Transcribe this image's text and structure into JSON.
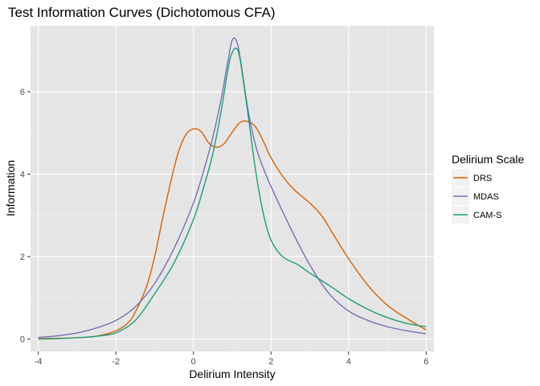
{
  "chart_data": {
    "type": "line",
    "title": "Test Information Curves (Dichotomous CFA)",
    "xlabel": "Delirium Intensity",
    "ylabel": "Information",
    "xlim": [
      -4.2,
      6.2
    ],
    "ylim": [
      -0.3,
      7.6
    ],
    "x_ticks": [
      -4,
      -2,
      0,
      2,
      4,
      6
    ],
    "y_ticks": [
      0,
      2,
      4,
      6
    ],
    "x_tick_labels": [
      "-4",
      "-2",
      "0",
      "2",
      "4",
      "6"
    ],
    "y_tick_labels": [
      "0",
      "2",
      "4",
      "6"
    ],
    "grid": true,
    "legend": {
      "title": "Delirium Scale",
      "position": "right"
    },
    "series": [
      {
        "name": "DRS",
        "color": "#d95f02",
        "points": [
          [
            -4,
            0.01
          ],
          [
            -3,
            0.03
          ],
          [
            -2.5,
            0.07
          ],
          [
            -2,
            0.2
          ],
          [
            -1.7,
            0.38
          ],
          [
            -1.5,
            0.65
          ],
          [
            -1.2,
            1.3
          ],
          [
            -1,
            2.0
          ],
          [
            -0.8,
            2.9
          ],
          [
            -0.6,
            3.75
          ],
          [
            -0.4,
            4.5
          ],
          [
            -0.2,
            4.95
          ],
          [
            0,
            5.1
          ],
          [
            0.2,
            5.03
          ],
          [
            0.4,
            4.75
          ],
          [
            0.6,
            4.65
          ],
          [
            0.8,
            4.75
          ],
          [
            1.0,
            5.02
          ],
          [
            1.2,
            5.25
          ],
          [
            1.4,
            5.28
          ],
          [
            1.6,
            5.15
          ],
          [
            1.8,
            4.8
          ],
          [
            2.0,
            4.4
          ],
          [
            2.3,
            3.95
          ],
          [
            2.6,
            3.62
          ],
          [
            3.0,
            3.3
          ],
          [
            3.3,
            3.0
          ],
          [
            3.6,
            2.55
          ],
          [
            4.0,
            1.95
          ],
          [
            4.5,
            1.3
          ],
          [
            5.0,
            0.82
          ],
          [
            5.5,
            0.5
          ],
          [
            6.0,
            0.22
          ]
        ]
      },
      {
        "name": "MDAS",
        "color": "#7570b3",
        "points": [
          [
            -4,
            0.04
          ],
          [
            -3.5,
            0.08
          ],
          [
            -3,
            0.15
          ],
          [
            -2.5,
            0.27
          ],
          [
            -2,
            0.45
          ],
          [
            -1.5,
            0.78
          ],
          [
            -1,
            1.35
          ],
          [
            -0.5,
            2.2
          ],
          [
            0,
            3.3
          ],
          [
            0.3,
            4.2
          ],
          [
            0.5,
            4.9
          ],
          [
            0.7,
            5.75
          ],
          [
            0.9,
            6.8
          ],
          [
            1.0,
            7.25
          ],
          [
            1.1,
            7.25
          ],
          [
            1.2,
            6.85
          ],
          [
            1.4,
            5.6
          ],
          [
            1.6,
            4.7
          ],
          [
            1.8,
            4.15
          ],
          [
            2.0,
            3.7
          ],
          [
            2.5,
            2.7
          ],
          [
            3.0,
            1.8
          ],
          [
            3.5,
            1.1
          ],
          [
            4.0,
            0.68
          ],
          [
            4.5,
            0.45
          ],
          [
            5.0,
            0.3
          ],
          [
            5.5,
            0.2
          ],
          [
            6.0,
            0.13
          ]
        ]
      },
      {
        "name": "CAM-S",
        "color": "#1b9e77",
        "points": [
          [
            -4,
            0.0
          ],
          [
            -3.5,
            0.01
          ],
          [
            -3,
            0.03
          ],
          [
            -2.5,
            0.07
          ],
          [
            -2,
            0.15
          ],
          [
            -1.5,
            0.45
          ],
          [
            -1,
            1.1
          ],
          [
            -0.5,
            1.85
          ],
          [
            0,
            2.9
          ],
          [
            0.3,
            3.8
          ],
          [
            0.5,
            4.5
          ],
          [
            0.7,
            5.45
          ],
          [
            0.9,
            6.6
          ],
          [
            1.0,
            6.95
          ],
          [
            1.1,
            7.05
          ],
          [
            1.2,
            6.8
          ],
          [
            1.4,
            5.5
          ],
          [
            1.6,
            4.1
          ],
          [
            1.8,
            3.05
          ],
          [
            2.0,
            2.4
          ],
          [
            2.3,
            2.0
          ],
          [
            2.7,
            1.8
          ],
          [
            3.0,
            1.6
          ],
          [
            3.5,
            1.3
          ],
          [
            4.0,
            0.98
          ],
          [
            4.5,
            0.72
          ],
          [
            5.0,
            0.52
          ],
          [
            5.5,
            0.38
          ],
          [
            6.0,
            0.3
          ]
        ]
      }
    ]
  }
}
